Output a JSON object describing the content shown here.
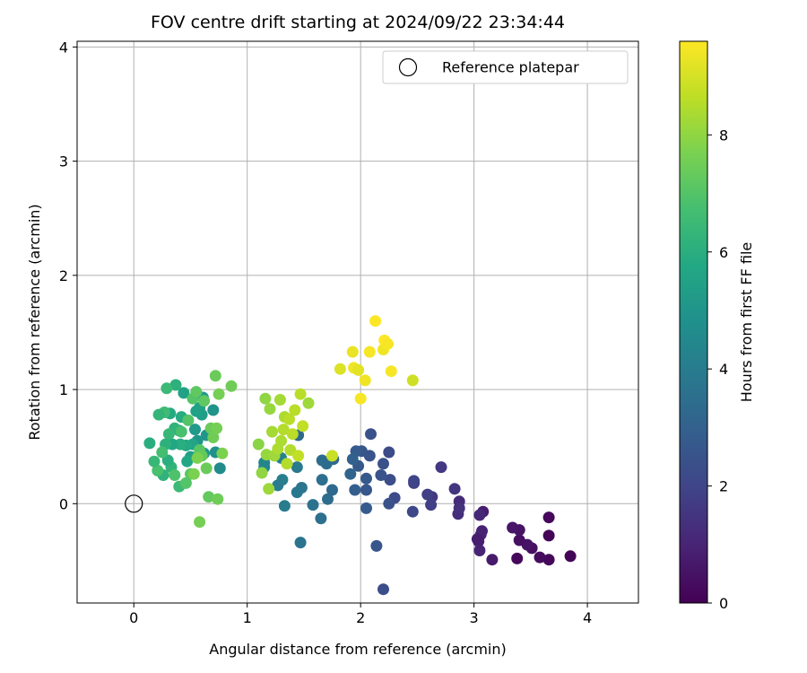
{
  "chart_data": {
    "type": "scatter",
    "title": "FOV centre drift starting at 2024/09/22 23:34:44",
    "xlabel": "Angular distance from reference (arcmin)",
    "ylabel": "Rotation from reference (arcmin)",
    "xlim": [
      -0.5,
      4.45
    ],
    "ylim": [
      -0.87,
      4.05
    ],
    "x_ticks": [
      0,
      1,
      2,
      3,
      4
    ],
    "y_ticks": [
      0,
      1,
      2,
      3,
      4
    ],
    "grid": true,
    "legend": {
      "placement": "top-right",
      "entries": [
        "Reference platepar"
      ]
    },
    "reference_point": {
      "x": 0,
      "y": 0,
      "label": "Reference platepar"
    },
    "colorbar": {
      "label": "Hours from first FF file",
      "range": [
        0,
        9.6
      ],
      "ticks": [
        0,
        2,
        4,
        6,
        8
      ],
      "colormap": "viridis"
    },
    "points": [
      [
        3.85,
        -0.46,
        0.1
      ],
      [
        3.66,
        -0.49,
        0.2
      ],
      [
        3.66,
        -0.28,
        0.1
      ],
      [
        3.66,
        -0.12,
        0.2
      ],
      [
        3.58,
        -0.47,
        0.3
      ],
      [
        3.51,
        -0.39,
        0.4
      ],
      [
        3.47,
        -0.36,
        0.5
      ],
      [
        3.4,
        -0.32,
        0.4
      ],
      [
        3.4,
        -0.23,
        0.5
      ],
      [
        3.38,
        -0.48,
        0.2
      ],
      [
        3.34,
        -0.21,
        0.6
      ],
      [
        3.16,
        -0.49,
        0.7
      ],
      [
        3.08,
        -0.07,
        0.8
      ],
      [
        3.07,
        -0.24,
        0.9
      ],
      [
        3.06,
        -0.27,
        1.0
      ],
      [
        3.05,
        -0.41,
        1.0
      ],
      [
        3.04,
        -0.33,
        0.9
      ],
      [
        3.03,
        -0.31,
        0.8
      ],
      [
        3.05,
        -0.1,
        1.1
      ],
      [
        2.87,
        0.02,
        1.2
      ],
      [
        2.86,
        -0.09,
        1.3
      ],
      [
        2.87,
        -0.04,
        1.4
      ],
      [
        2.83,
        0.13,
        1.5
      ],
      [
        2.71,
        0.32,
        1.6
      ],
      [
        2.63,
        0.06,
        1.6
      ],
      [
        2.62,
        -0.01,
        1.8
      ],
      [
        2.59,
        0.08,
        1.8
      ],
      [
        2.47,
        0.18,
        1.9
      ],
      [
        2.47,
        0.2,
        2.0
      ],
      [
        2.46,
        -0.07,
        2.1
      ],
      [
        2.3,
        0.05,
        2.2
      ],
      [
        2.26,
        0.21,
        2.3
      ],
      [
        2.25,
        0.45,
        2.2
      ],
      [
        2.25,
        0.0,
        2.4
      ],
      [
        2.2,
        0.35,
        2.4
      ],
      [
        2.2,
        -0.75,
        2.3
      ],
      [
        2.18,
        0.25,
        2.5
      ],
      [
        2.14,
        -0.37,
        2.6
      ],
      [
        2.09,
        0.61,
        2.4
      ],
      [
        2.08,
        0.42,
        2.5
      ],
      [
        2.05,
        0.12,
        2.6
      ],
      [
        2.05,
        0.22,
        2.7
      ],
      [
        2.05,
        -0.04,
        2.8
      ],
      [
        2.01,
        0.46,
        2.6
      ],
      [
        1.98,
        0.33,
        2.7
      ],
      [
        1.96,
        0.46,
        2.8
      ],
      [
        1.95,
        0.12,
        2.9
      ],
      [
        1.93,
        0.39,
        3.0
      ],
      [
        1.91,
        0.26,
        3.1
      ],
      [
        1.76,
        0.39,
        3.2
      ],
      [
        1.75,
        0.12,
        3.3
      ],
      [
        1.71,
        0.04,
        3.4
      ],
      [
        1.7,
        0.35,
        3.4
      ],
      [
        1.66,
        0.21,
        3.5
      ],
      [
        1.66,
        0.38,
        3.4
      ],
      [
        1.65,
        -0.13,
        3.5
      ],
      [
        1.58,
        -0.01,
        3.6
      ],
      [
        1.48,
        0.14,
        3.7
      ],
      [
        1.47,
        -0.34,
        3.7
      ],
      [
        1.44,
        0.1,
        3.8
      ],
      [
        1.44,
        0.32,
        3.9
      ],
      [
        1.45,
        0.6,
        3.3
      ],
      [
        1.33,
        -0.02,
        4.0
      ],
      [
        1.31,
        0.21,
        4.1
      ],
      [
        1.3,
        0.4,
        4.2
      ],
      [
        1.27,
        0.16,
        4.0
      ],
      [
        1.15,
        0.36,
        4.3
      ],
      [
        1.15,
        0.32,
        4.4
      ],
      [
        0.76,
        0.31,
        4.6
      ],
      [
        0.72,
        0.45,
        4.8
      ],
      [
        0.7,
        0.82,
        4.9
      ],
      [
        0.64,
        0.6,
        5.0
      ],
      [
        0.62,
        0.44,
        5.1
      ],
      [
        0.61,
        0.93,
        5.2
      ],
      [
        0.6,
        0.78,
        5.3
      ],
      [
        0.58,
        0.84,
        5.4
      ],
      [
        0.56,
        0.55,
        5.0
      ],
      [
        0.55,
        0.81,
        5.5
      ],
      [
        0.54,
        0.65,
        5.2
      ],
      [
        0.52,
        0.52,
        5.6
      ],
      [
        0.5,
        0.41,
        5.4
      ],
      [
        0.47,
        0.37,
        5.7
      ],
      [
        0.46,
        0.51,
        5.8
      ],
      [
        0.44,
        0.97,
        5.5
      ],
      [
        0.42,
        0.76,
        5.9
      ],
      [
        0.41,
        0.52,
        6.0
      ],
      [
        0.4,
        0.64,
        5.6
      ],
      [
        0.37,
        1.04,
        6.1
      ],
      [
        0.36,
        0.66,
        6.2
      ],
      [
        0.34,
        0.52,
        5.7
      ],
      [
        0.33,
        0.32,
        6.3
      ],
      [
        0.32,
        0.79,
        5.8
      ],
      [
        0.31,
        0.61,
        6.4
      ],
      [
        0.3,
        0.38,
        6.0
      ],
      [
        0.29,
        1.01,
        6.5
      ],
      [
        0.28,
        0.52,
        6.1
      ],
      [
        0.27,
        0.8,
        6.6
      ],
      [
        0.26,
        0.25,
        6.2
      ],
      [
        0.25,
        0.45,
        6.7
      ],
      [
        0.22,
        0.78,
        6.3
      ],
      [
        0.21,
        0.29,
        6.8
      ],
      [
        0.18,
        0.37,
        6.4
      ],
      [
        0.14,
        0.53,
        6.0
      ],
      [
        0.36,
        0.25,
        6.9
      ],
      [
        0.4,
        0.15,
        6.5
      ],
      [
        0.46,
        0.18,
        7.0
      ],
      [
        0.42,
        0.63,
        6.8
      ],
      [
        0.48,
        0.73,
        7.0
      ],
      [
        0.5,
        0.26,
        7.1
      ],
      [
        0.52,
        0.92,
        7.0
      ],
      [
        0.55,
        0.98,
        7.2
      ],
      [
        0.58,
        0.47,
        7.1
      ],
      [
        0.6,
        0.42,
        7.3
      ],
      [
        0.62,
        0.9,
        7.2
      ],
      [
        0.64,
        0.31,
        7.4
      ],
      [
        0.66,
        0.06,
        7.3
      ],
      [
        0.68,
        0.66,
        7.4
      ],
      [
        0.7,
        0.58,
        7.5
      ],
      [
        0.72,
        1.12,
        7.4
      ],
      [
        0.73,
        0.66,
        7.6
      ],
      [
        0.74,
        0.04,
        7.5
      ],
      [
        0.75,
        0.96,
        7.6
      ],
      [
        0.78,
        0.44,
        7.7
      ],
      [
        0.58,
        -0.16,
        7.6
      ],
      [
        0.86,
        1.03,
        7.5
      ],
      [
        0.56,
        0.4,
        7.7
      ],
      [
        0.53,
        0.26,
        7.7
      ],
      [
        1.1,
        0.52,
        7.9
      ],
      [
        1.13,
        0.27,
        8.0
      ],
      [
        1.16,
        0.92,
        8.0
      ],
      [
        1.17,
        0.43,
        8.1
      ],
      [
        1.19,
        0.13,
        8.2
      ],
      [
        1.2,
        0.83,
        8.1
      ],
      [
        1.22,
        0.63,
        8.3
      ],
      [
        1.24,
        0.42,
        8.2
      ],
      [
        1.27,
        0.48,
        8.4
      ],
      [
        1.29,
        0.91,
        8.3
      ],
      [
        1.3,
        0.55,
        8.4
      ],
      [
        1.32,
        0.65,
        8.5
      ],
      [
        1.33,
        0.76,
        8.4
      ],
      [
        1.35,
        0.35,
        8.5
      ],
      [
        1.37,
        0.74,
        8.6
      ],
      [
        1.38,
        0.47,
        8.5
      ],
      [
        1.4,
        0.61,
        8.6
      ],
      [
        1.42,
        0.82,
        8.6
      ],
      [
        1.45,
        0.42,
        8.7
      ],
      [
        1.47,
        0.96,
        8.6
      ],
      [
        1.49,
        0.68,
        8.7
      ],
      [
        1.54,
        0.88,
        8.2
      ],
      [
        1.75,
        0.42,
        8.8
      ],
      [
        2.46,
        1.08,
        8.9
      ],
      [
        1.82,
        1.18,
        9.1
      ],
      [
        1.93,
        1.33,
        9.3
      ],
      [
        1.94,
        1.19,
        9.4
      ],
      [
        1.98,
        1.17,
        9.2
      ],
      [
        2.0,
        0.92,
        9.5
      ],
      [
        2.04,
        1.08,
        9.4
      ],
      [
        2.08,
        1.33,
        9.5
      ],
      [
        2.13,
        1.6,
        9.6
      ],
      [
        2.2,
        1.35,
        9.4
      ],
      [
        2.21,
        1.43,
        9.6
      ],
      [
        2.24,
        1.4,
        9.5
      ],
      [
        2.27,
        1.16,
        9.5
      ]
    ]
  }
}
